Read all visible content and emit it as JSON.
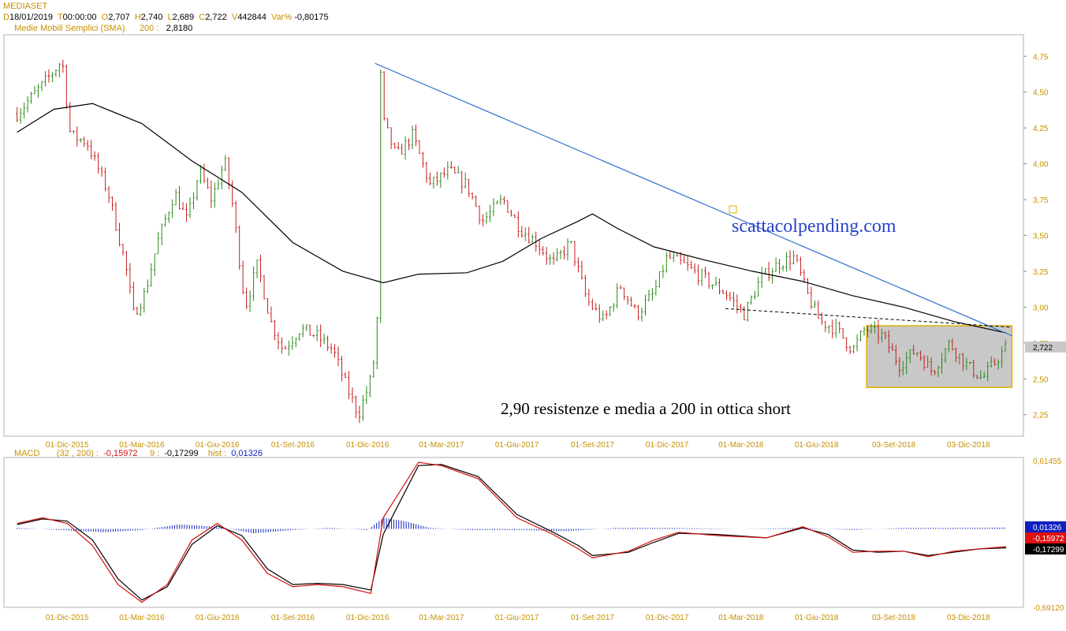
{
  "header": {
    "ticker": "MEDIASET",
    "date_label": "D",
    "date": "18/01/2019",
    "time_label": "T",
    "time": "00:00:00",
    "open_label": "O",
    "open": "2,707",
    "high_label": "H",
    "high": "2,740",
    "low_label": "L",
    "low": "2,689",
    "close_label": "C",
    "close": "2,722",
    "volume_label": "V",
    "volume": "442844",
    "var_label": "Var%",
    "var": "-0,80175",
    "sma_label": "Medie Mobili Semplici (SMA)",
    "sma_period": "200 :",
    "sma_value": "2,8180"
  },
  "macd_header": {
    "label": "MACD",
    "params": "(32 , 200) :",
    "macd_value": "-0,15972",
    "signal_label": "9 :",
    "signal_value": "-0,17299",
    "hist_label": "hist :",
    "hist_value": "0,01326"
  },
  "annotations": {
    "watermark": "scattacolpending.com",
    "note": "2,90 resistenze e media a 200 in ottica short"
  },
  "colors": {
    "up": "#2a8a1a",
    "down": "#c81e1e",
    "trendline": "#2f6fd0",
    "sma": "#000000",
    "macd": "#d01010",
    "signal": "#000000",
    "histogram": "#1020c0",
    "box_fill": "#c8c8c8",
    "box_border": "#e0b000",
    "label": "#c79000"
  },
  "chart_data": [
    {
      "type": "candlestick",
      "title": "MEDIASET",
      "x_ticks": [
        "01-Dic-2015",
        "01-Mar-2016",
        "01-Giu-2016",
        "01-Set-2016",
        "01-Dic-2016",
        "01-Mar-2017",
        "01-Giu-2017",
        "01-Set-2017",
        "01-Dic-2017",
        "01-Mar-2018",
        "01-Giu-2018",
        "03-Set-2018",
        "03-Dic-2018"
      ],
      "y_ticks": [
        "2,25",
        "2,50",
        "2,75",
        "3,00",
        "3,25",
        "3,50",
        "3,75",
        "4,00",
        "4,25",
        "4,50",
        "4,75"
      ],
      "ylim": [
        2.1,
        4.9
      ],
      "last_price_label": "2,722",
      "last_price": 2.722,
      "price_path": [
        {
          "x": "2015-10-01",
          "y": 4.35
        },
        {
          "x": "2015-11-01",
          "y": 4.55
        },
        {
          "x": "2015-11-25",
          "y": 4.72
        },
        {
          "x": "2015-12-05",
          "y": 4.2
        },
        {
          "x": "2015-12-25",
          "y": 4.15
        },
        {
          "x": "2016-01-20",
          "y": 3.8
        },
        {
          "x": "2016-02-10",
          "y": 3.3
        },
        {
          "x": "2016-02-20",
          "y": 2.95
        },
        {
          "x": "2016-03-05",
          "y": 3.1
        },
        {
          "x": "2016-03-20",
          "y": 3.45
        },
        {
          "x": "2016-04-10",
          "y": 3.8
        },
        {
          "x": "2016-04-25",
          "y": 3.6
        },
        {
          "x": "2016-05-10",
          "y": 3.95
        },
        {
          "x": "2016-05-25",
          "y": 3.75
        },
        {
          "x": "2016-06-10",
          "y": 4.02
        },
        {
          "x": "2016-06-20",
          "y": 3.7
        },
        {
          "x": "2016-07-05",
          "y": 3.0
        },
        {
          "x": "2016-07-20",
          "y": 3.3
        },
        {
          "x": "2016-08-05",
          "y": 2.9
        },
        {
          "x": "2016-08-20",
          "y": 2.7
        },
        {
          "x": "2016-09-10",
          "y": 2.85
        },
        {
          "x": "2016-09-30",
          "y": 2.8
        },
        {
          "x": "2016-10-20",
          "y": 2.7
        },
        {
          "x": "2016-11-05",
          "y": 2.45
        },
        {
          "x": "2016-11-20",
          "y": 2.25
        },
        {
          "x": "2016-12-05",
          "y": 2.5
        },
        {
          "x": "2016-12-12",
          "y": 2.75
        },
        {
          "x": "2016-12-14",
          "y": 3.3
        },
        {
          "x": "2016-12-16",
          "y": 4.7
        },
        {
          "x": "2016-12-20",
          "y": 4.3
        },
        {
          "x": "2017-01-05",
          "y": 4.05
        },
        {
          "x": "2017-01-25",
          "y": 4.2
        },
        {
          "x": "2017-02-15",
          "y": 3.85
        },
        {
          "x": "2017-03-10",
          "y": 3.95
        },
        {
          "x": "2017-04-01",
          "y": 3.85
        },
        {
          "x": "2017-04-20",
          "y": 3.6
        },
        {
          "x": "2017-05-15",
          "y": 3.75
        },
        {
          "x": "2017-06-05",
          "y": 3.55
        },
        {
          "x": "2017-06-25",
          "y": 3.45
        },
        {
          "x": "2017-07-15",
          "y": 3.3
        },
        {
          "x": "2017-08-05",
          "y": 3.45
        },
        {
          "x": "2017-08-25",
          "y": 3.05
        },
        {
          "x": "2017-09-15",
          "y": 2.9
        },
        {
          "x": "2017-10-05",
          "y": 3.15
        },
        {
          "x": "2017-10-25",
          "y": 2.95
        },
        {
          "x": "2017-11-15",
          "y": 3.1
        },
        {
          "x": "2017-12-01",
          "y": 3.35
        },
        {
          "x": "2017-12-20",
          "y": 3.3
        },
        {
          "x": "2018-01-15",
          "y": 3.2
        },
        {
          "x": "2018-02-10",
          "y": 3.1
        },
        {
          "x": "2018-03-05",
          "y": 2.95
        },
        {
          "x": "2018-03-25",
          "y": 3.2
        },
        {
          "x": "2018-04-15",
          "y": 3.3
        },
        {
          "x": "2018-05-05",
          "y": 3.35
        },
        {
          "x": "2018-05-20",
          "y": 3.1
        },
        {
          "x": "2018-06-05",
          "y": 2.9
        },
        {
          "x": "2018-06-25",
          "y": 2.85
        },
        {
          "x": "2018-07-15",
          "y": 2.7
        },
        {
          "x": "2018-07-30",
          "y": 2.85
        },
        {
          "x": "2018-08-20",
          "y": 2.8
        },
        {
          "x": "2018-09-10",
          "y": 2.6
        },
        {
          "x": "2018-09-30",
          "y": 2.7
        },
        {
          "x": "2018-10-20",
          "y": 2.55
        },
        {
          "x": "2018-11-10",
          "y": 2.75
        },
        {
          "x": "2018-11-30",
          "y": 2.6
        },
        {
          "x": "2018-12-20",
          "y": 2.5
        },
        {
          "x": "2019-01-18",
          "y": 2.72
        }
      ],
      "sma_path": [
        {
          "x": "2015-10-01",
          "y": 4.22
        },
        {
          "x": "2015-11-15",
          "y": 4.38
        },
        {
          "x": "2016-01-01",
          "y": 4.42
        },
        {
          "x": "2016-03-01",
          "y": 4.28
        },
        {
          "x": "2016-05-01",
          "y": 4.02
        },
        {
          "x": "2016-07-01",
          "y": 3.8
        },
        {
          "x": "2016-09-01",
          "y": 3.45
        },
        {
          "x": "2016-11-01",
          "y": 3.25
        },
        {
          "x": "2016-12-20",
          "y": 3.17
        },
        {
          "x": "2017-02-01",
          "y": 3.23
        },
        {
          "x": "2017-04-01",
          "y": 3.24
        },
        {
          "x": "2017-05-15",
          "y": 3.32
        },
        {
          "x": "2017-07-01",
          "y": 3.48
        },
        {
          "x": "2017-08-15",
          "y": 3.6
        },
        {
          "x": "2017-09-01",
          "y": 3.65
        },
        {
          "x": "2017-10-01",
          "y": 3.55
        },
        {
          "x": "2017-11-15",
          "y": 3.42
        },
        {
          "x": "2018-01-15",
          "y": 3.33
        },
        {
          "x": "2018-03-15",
          "y": 3.25
        },
        {
          "x": "2018-05-15",
          "y": 3.18
        },
        {
          "x": "2018-07-15",
          "y": 3.08
        },
        {
          "x": "2018-09-15",
          "y": 3.0
        },
        {
          "x": "2018-11-15",
          "y": 2.9
        },
        {
          "x": "2019-01-18",
          "y": 2.82
        }
      ],
      "trendline": [
        {
          "x": "2016-12-10",
          "y": 4.7
        },
        {
          "x": "2019-01-25",
          "y": 2.8
        }
      ],
      "support_line": [
        {
          "x": "2018-02-10",
          "y": 2.99
        },
        {
          "x": "2019-01-25",
          "y": 2.86
        }
      ],
      "range_box": {
        "x_start": "2018-08-01",
        "x_end": "2019-01-25",
        "y_low": 2.44,
        "y_high": 2.87
      }
    },
    {
      "type": "line",
      "title": "MACD",
      "x_ticks": [
        "01-Dic-2015",
        "01-Mar-2016",
        "01-Giu-2016",
        "01-Set-2016",
        "01-Dic-2016",
        "01-Mar-2017",
        "01-Giu-2017",
        "01-Set-2017",
        "01-Dic-2017",
        "01-Mar-2018",
        "01-Giu-2018",
        "03-Set-2018",
        "03-Dic-2018"
      ],
      "y_ticks": [
        "0,61455",
        "-0,69120"
      ],
      "ylim": [
        -0.6912,
        0.61455
      ],
      "value_labels": [
        "0,01326",
        "-0,15972",
        "-0,17299"
      ],
      "series": [
        {
          "name": "MACD",
          "points": [
            {
              "x": "2015-10-01",
              "y": 0.05
            },
            {
              "x": "2015-11-01",
              "y": 0.1
            },
            {
              "x": "2015-12-01",
              "y": 0.05
            },
            {
              "x": "2016-01-01",
              "y": -0.15
            },
            {
              "x": "2016-02-01",
              "y": -0.5
            },
            {
              "x": "2016-03-01",
              "y": -0.66
            },
            {
              "x": "2016-04-01",
              "y": -0.5
            },
            {
              "x": "2016-05-01",
              "y": -0.1
            },
            {
              "x": "2016-06-01",
              "y": 0.05
            },
            {
              "x": "2016-07-01",
              "y": -0.1
            },
            {
              "x": "2016-08-01",
              "y": -0.4
            },
            {
              "x": "2016-09-01",
              "y": -0.52
            },
            {
              "x": "2016-10-01",
              "y": -0.5
            },
            {
              "x": "2016-11-01",
              "y": -0.52
            },
            {
              "x": "2016-12-05",
              "y": -0.58
            },
            {
              "x": "2016-12-20",
              "y": 0.1
            },
            {
              "x": "2017-02-01",
              "y": 0.6
            },
            {
              "x": "2017-03-01",
              "y": 0.57
            },
            {
              "x": "2017-04-15",
              "y": 0.45
            },
            {
              "x": "2017-06-01",
              "y": 0.1
            },
            {
              "x": "2017-07-15",
              "y": -0.05
            },
            {
              "x": "2017-08-15",
              "y": -0.18
            },
            {
              "x": "2017-09-01",
              "y": -0.26
            },
            {
              "x": "2017-10-15",
              "y": -0.2
            },
            {
              "x": "2017-11-15",
              "y": -0.1
            },
            {
              "x": "2017-12-15",
              "y": -0.03
            },
            {
              "x": "2018-02-01",
              "y": -0.06
            },
            {
              "x": "2018-04-01",
              "y": -0.08
            },
            {
              "x": "2018-05-15",
              "y": 0.02
            },
            {
              "x": "2018-06-15",
              "y": -0.07
            },
            {
              "x": "2018-07-15",
              "y": -0.21
            },
            {
              "x": "2018-08-15",
              "y": -0.2
            },
            {
              "x": "2018-09-15",
              "y": -0.2
            },
            {
              "x": "2018-10-15",
              "y": -0.25
            },
            {
              "x": "2018-11-15",
              "y": -0.2
            },
            {
              "x": "2018-12-15",
              "y": -0.18
            },
            {
              "x": "2019-01-18",
              "y": -0.16
            }
          ]
        },
        {
          "name": "9",
          "points": [
            {
              "x": "2015-10-01",
              "y": 0.04
            },
            {
              "x": "2015-11-01",
              "y": 0.09
            },
            {
              "x": "2015-12-01",
              "y": 0.07
            },
            {
              "x": "2016-01-01",
              "y": -0.1
            },
            {
              "x": "2016-02-01",
              "y": -0.45
            },
            {
              "x": "2016-03-01",
              "y": -0.64
            },
            {
              "x": "2016-04-01",
              "y": -0.52
            },
            {
              "x": "2016-05-01",
              "y": -0.14
            },
            {
              "x": "2016-06-01",
              "y": 0.03
            },
            {
              "x": "2016-07-01",
              "y": -0.06
            },
            {
              "x": "2016-08-01",
              "y": -0.36
            },
            {
              "x": "2016-09-01",
              "y": -0.5
            },
            {
              "x": "2016-10-01",
              "y": -0.49
            },
            {
              "x": "2016-11-01",
              "y": -0.5
            },
            {
              "x": "2016-12-05",
              "y": -0.55
            },
            {
              "x": "2016-12-20",
              "y": -0.05
            },
            {
              "x": "2017-02-01",
              "y": 0.57
            },
            {
              "x": "2017-03-01",
              "y": 0.58
            },
            {
              "x": "2017-04-15",
              "y": 0.47
            },
            {
              "x": "2017-06-01",
              "y": 0.13
            },
            {
              "x": "2017-07-15",
              "y": -0.03
            },
            {
              "x": "2017-08-15",
              "y": -0.15
            },
            {
              "x": "2017-09-01",
              "y": -0.24
            },
            {
              "x": "2017-10-15",
              "y": -0.21
            },
            {
              "x": "2017-11-15",
              "y": -0.12
            },
            {
              "x": "2017-12-15",
              "y": -0.04
            },
            {
              "x": "2018-02-01",
              "y": -0.05
            },
            {
              "x": "2018-04-01",
              "y": -0.08
            },
            {
              "x": "2018-05-15",
              "y": 0.01
            },
            {
              "x": "2018-06-15",
              "y": -0.05
            },
            {
              "x": "2018-07-15",
              "y": -0.19
            },
            {
              "x": "2018-08-15",
              "y": -0.21
            },
            {
              "x": "2018-09-15",
              "y": -0.2
            },
            {
              "x": "2018-10-15",
              "y": -0.24
            },
            {
              "x": "2018-11-15",
              "y": -0.21
            },
            {
              "x": "2018-12-15",
              "y": -0.18
            },
            {
              "x": "2019-01-18",
              "y": -0.17
            }
          ]
        },
        {
          "name": "hist",
          "points": [
            {
              "x": "2015-10-01",
              "y": 0.01
            },
            {
              "x": "2016-01-15",
              "y": -0.03
            },
            {
              "x": "2016-03-01",
              "y": -0.01
            },
            {
              "x": "2016-04-15",
              "y": 0.04
            },
            {
              "x": "2016-05-10",
              "y": 0.03
            },
            {
              "x": "2016-06-10",
              "y": 0.01
            },
            {
              "x": "2016-07-15",
              "y": -0.04
            },
            {
              "x": "2016-09-01",
              "y": -0.01
            },
            {
              "x": "2016-10-15",
              "y": 0.01
            },
            {
              "x": "2016-12-01",
              "y": -0.01
            },
            {
              "x": "2016-12-20",
              "y": 0.1
            },
            {
              "x": "2017-01-15",
              "y": 0.07
            },
            {
              "x": "2017-02-15",
              "y": 0.01
            },
            {
              "x": "2017-04-01",
              "y": -0.01
            },
            {
              "x": "2017-06-01",
              "y": -0.01
            },
            {
              "x": "2017-08-01",
              "y": -0.02
            },
            {
              "x": "2017-10-01",
              "y": 0.01
            },
            {
              "x": "2017-12-01",
              "y": 0.01
            },
            {
              "x": "2018-03-01",
              "y": 0.0
            },
            {
              "x": "2018-05-15",
              "y": 0.01
            },
            {
              "x": "2018-07-15",
              "y": -0.01
            },
            {
              "x": "2018-09-15",
              "y": 0.01
            },
            {
              "x": "2018-11-15",
              "y": 0.01
            },
            {
              "x": "2019-01-18",
              "y": 0.013
            }
          ]
        }
      ]
    }
  ]
}
